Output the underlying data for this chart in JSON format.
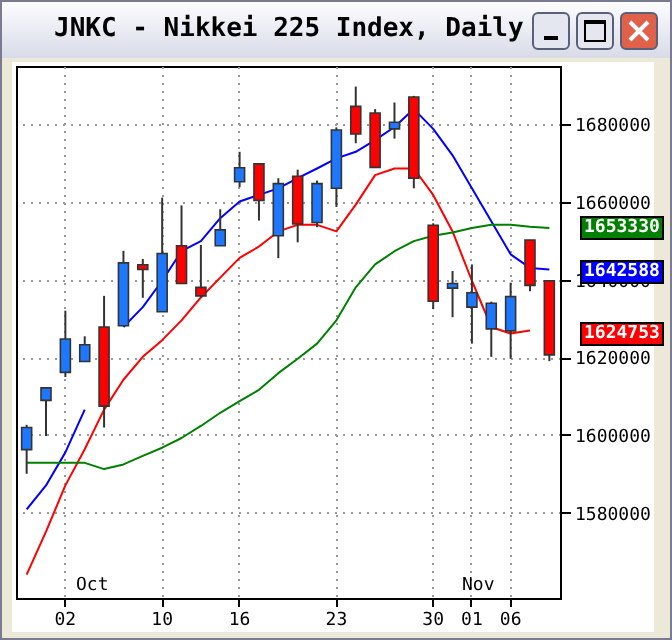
{
  "chart_data": {
    "type": "candlestick",
    "title": "JNKC - Nikkei 225 Index, Daily",
    "categories": [
      null,
      null,
      "02",
      null,
      null,
      null,
      null,
      "10",
      null,
      null,
      null,
      "16",
      null,
      null,
      null,
      null,
      "23",
      null,
      null,
      null,
      null,
      "30",
      null,
      "01",
      null,
      "06",
      null,
      null
    ],
    "series": [
      {
        "colors": [
          "#1e78ff",
          "#1e78ff",
          "#1e78ff",
          "#1e78ff",
          "#ff0000",
          "#1e78ff",
          "#ff0000",
          "#1e78ff",
          "#ff0000",
          "#ff0000",
          "#1e78ff",
          "#1e78ff",
          "#ff0000",
          "#1e78ff",
          "#ff0000",
          "#1e78ff",
          "#1e78ff",
          "#ff0000",
          "#ff0000",
          "#1e78ff",
          "#ff0000",
          "#ff0000",
          "#1e78ff",
          "#1e78ff",
          "#1e78ff",
          "#1e78ff",
          "#ff0000",
          "#ff0000"
        ],
        "ohlc": [
          [
            1596200,
            1602600,
            1590000,
            1601900
          ],
          [
            1608900,
            1612100,
            1599700,
            1612100
          ],
          [
            1616100,
            1632000,
            1614900,
            1624700
          ],
          [
            1618900,
            1625400,
            1618900,
            1623200
          ],
          [
            1627800,
            1635800,
            1601900,
            1607400
          ],
          [
            1628100,
            1647400,
            1628100,
            1644300
          ],
          [
            1643800,
            1645300,
            1635300,
            1642600
          ],
          [
            1631700,
            1661100,
            1631700,
            1646700
          ],
          [
            1648700,
            1659100,
            1639000,
            1639000
          ],
          [
            1638000,
            1648900,
            1635400,
            1635800
          ],
          [
            1648700,
            1658100,
            1648700,
            1652800
          ],
          [
            1665200,
            1672900,
            1663800,
            1668800
          ],
          [
            1669800,
            1669800,
            1655200,
            1660400
          ],
          [
            1651300,
            1666100,
            1645500,
            1664700
          ],
          [
            1666600,
            1668300,
            1649600,
            1654300
          ],
          [
            1654700,
            1665500,
            1653500,
            1664700
          ],
          [
            1663500,
            1679200,
            1658700,
            1678500
          ],
          [
            1684600,
            1689700,
            1675100,
            1677500
          ],
          [
            1682900,
            1683900,
            1668900,
            1668900
          ],
          [
            1678800,
            1685600,
            1676300,
            1680500
          ],
          [
            1687000,
            1687300,
            1663500,
            1666100
          ],
          [
            1654000,
            1654500,
            1632400,
            1634400
          ],
          [
            1637800,
            1642200,
            1630300,
            1639000
          ],
          [
            1632900,
            1643900,
            1623500,
            1636600
          ],
          [
            1627300,
            1634300,
            1620100,
            1633900
          ],
          [
            1626800,
            1639200,
            1619600,
            1635600
          ],
          [
            1650200,
            1650200,
            1637000,
            1638500
          ],
          [
            1639700,
            1639700,
            1619000,
            1620600
          ]
        ]
      },
      {
        "type": "line",
        "color": "#0000ff",
        "values": [
          1580800,
          1587000,
          1595500,
          1606500,
          null,
          1627800,
          1632900,
          1639700,
          1647300,
          1649900,
          1655800,
          1660100,
          1661800,
          1663500,
          1666100,
          1668600,
          1671200,
          1672900,
          1675900,
          1679300,
          1683900,
          1678800,
          1672000,
          1663500,
          1655000,
          1646500,
          1643000,
          1642600
        ]
      },
      {
        "type": "line",
        "color": "#ff0000",
        "values": [
          1564000,
          1575100,
          1587000,
          1596300,
          1606500,
          1614200,
          1620100,
          1624400,
          1629500,
          1635400,
          1640500,
          1645600,
          1648500,
          1652400,
          1654100,
          1654100,
          1652400,
          1659300,
          1666900,
          1668600,
          1668600,
          1661800,
          1652400,
          1639700,
          1627800,
          1626100,
          1626900,
          null
        ]
      },
      {
        "type": "line",
        "color": "#008000",
        "values": [
          1592800,
          1592800,
          1592800,
          1592800,
          1591200,
          1592400,
          1594600,
          1596700,
          1599200,
          1602300,
          1605700,
          1608700,
          1611600,
          1615900,
          1619600,
          1623500,
          1629500,
          1638000,
          1643900,
          1647300,
          1649900,
          1651300,
          1652100,
          1653300,
          1654100,
          1654100,
          1653600,
          1653300
        ]
      }
    ],
    "ylim": [
      1558000,
      1695000
    ],
    "yticks": [
      1580000,
      1600000,
      1620000,
      1640000,
      1660000,
      1680000
    ],
    "grid": true,
    "line_style": "solid",
    "annotations": [
      "Oct",
      "Nov",
      "1653330",
      "1642588",
      "1624753"
    ]
  }
}
